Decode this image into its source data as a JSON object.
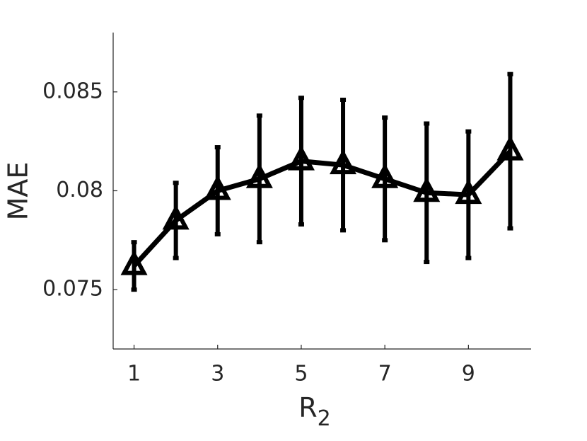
{
  "chart_data": {
    "type": "errorbar-line",
    "y_label": "MAE",
    "x_label": {
      "base": "R",
      "subscript": "2"
    },
    "x": [
      1,
      2,
      3,
      4,
      5,
      6,
      7,
      8,
      9,
      10
    ],
    "series": [
      {
        "color": "#000000",
        "values": [
          0.0762,
          0.0785,
          0.08,
          0.0806,
          0.0815,
          0.0813,
          0.0806,
          0.0799,
          0.0798,
          0.082
        ],
        "errors": [
          0.0012,
          0.0019,
          0.0022,
          0.0032,
          0.0032,
          0.0033,
          0.0031,
          0.0035,
          0.0032,
          0.0039
        ]
      }
    ],
    "xlim": [
      0.5,
      10.5
    ],
    "ylim": [
      0.072,
      0.088
    ],
    "xticks": [
      1,
      3,
      5,
      7,
      9
    ],
    "yticks": [
      0.075,
      0.08,
      0.085
    ],
    "grid": false
  }
}
